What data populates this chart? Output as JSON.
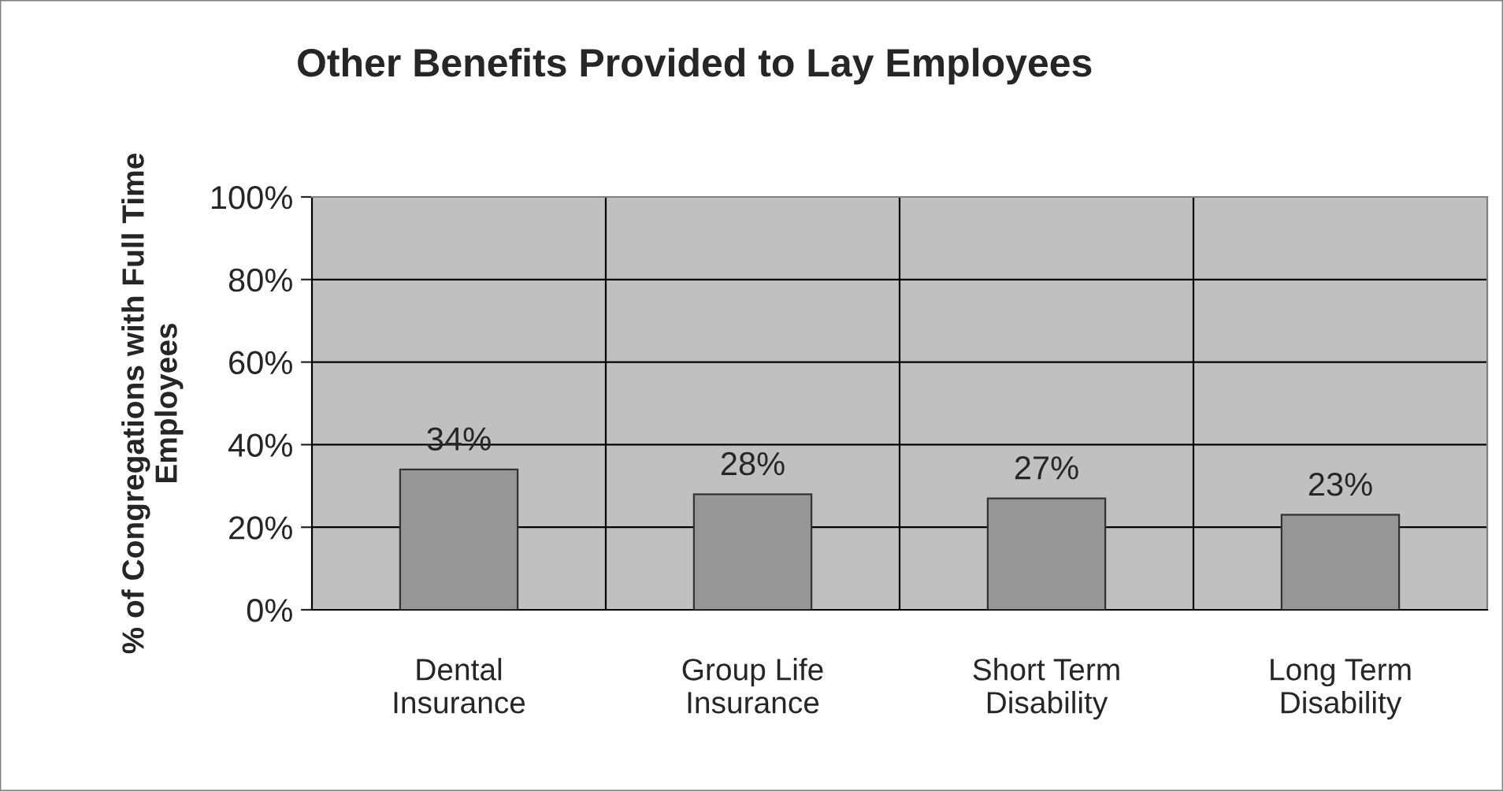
{
  "chart_data": {
    "type": "bar",
    "title": "Other Benefits Provided to Lay Employees",
    "ylabel": "% of Congregations with Full Time\nEmployees",
    "categories": [
      "Dental\nInsurance",
      "Group Life\nInsurance",
      "Short Term\nDisability",
      "Long Term\nDisability"
    ],
    "values": [
      34,
      28,
      27,
      23
    ],
    "value_labels": [
      "34%",
      "28%",
      "27%",
      "23%"
    ],
    "color": "#969696",
    "ylim": [
      0,
      100
    ],
    "yticks": [
      {
        "value": 0,
        "label": "0%"
      },
      {
        "value": 20,
        "label": "20%"
      },
      {
        "value": 40,
        "label": "40%"
      },
      {
        "value": 60,
        "label": "60%"
      },
      {
        "value": 80,
        "label": "80%"
      },
      {
        "value": 100,
        "label": "100%"
      }
    ],
    "grid": true,
    "legend": false
  }
}
